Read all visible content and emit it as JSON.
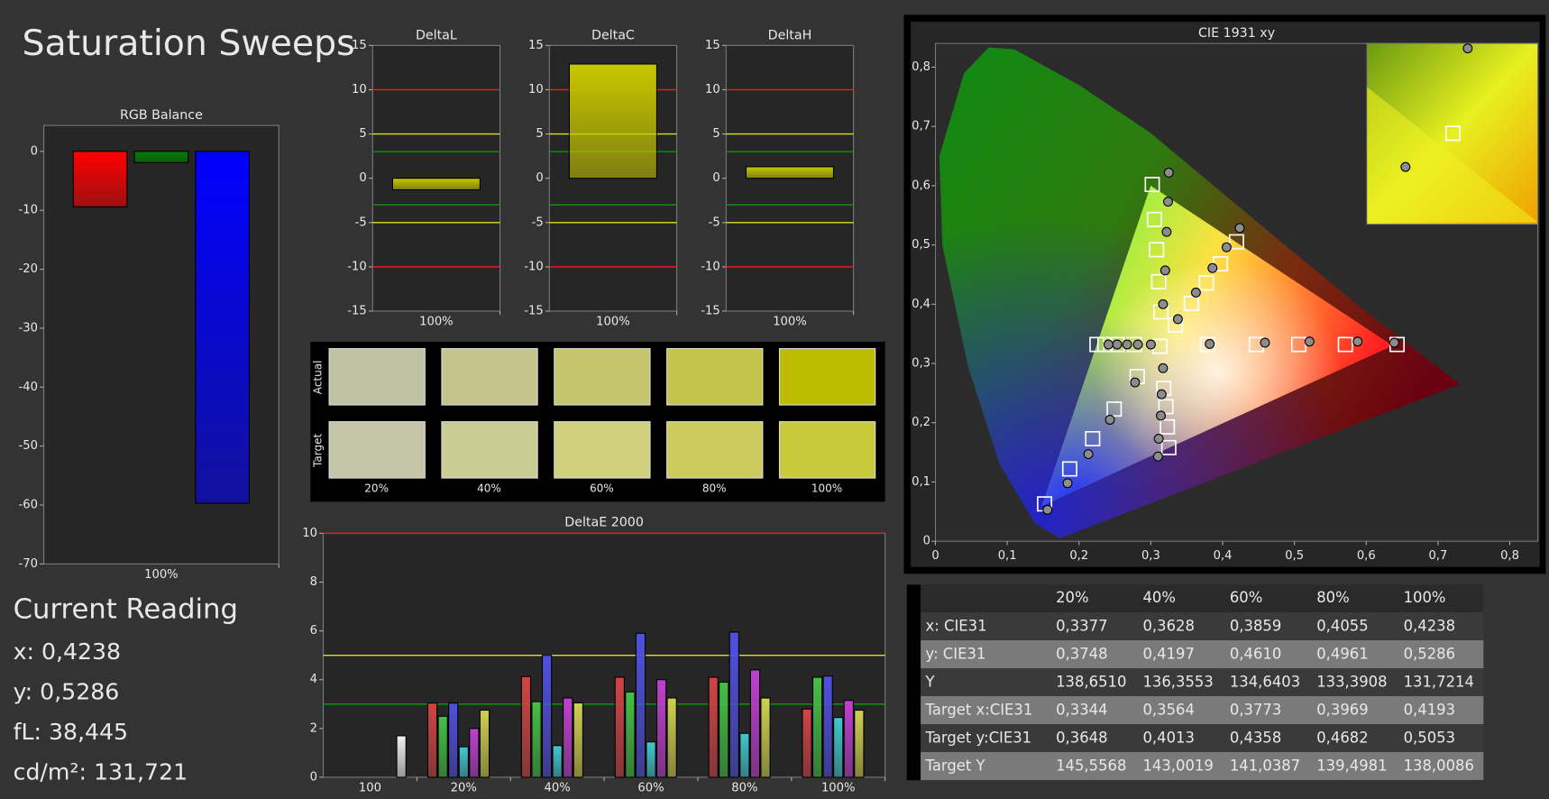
{
  "title": "Saturation Sweeps",
  "current_reading": {
    "heading": "Current Reading",
    "lines": [
      "x: 0,4238",
      "y: 0,5286",
      "fL: 38,445",
      "cd/m²: 131,721"
    ]
  },
  "chart_data": [
    {
      "type": "bar",
      "title": "RGB Balance",
      "categories": [
        "100%"
      ],
      "series": [
        {
          "color": "#ff0000",
          "values": [
            -9.4
          ]
        },
        {
          "color": "#008000",
          "values": [
            -1.9
          ]
        },
        {
          "color": "#0000ff",
          "values": [
            -59.7
          ]
        }
      ],
      "ylim": [
        -70,
        4.4
      ],
      "yticks": [
        0,
        -10,
        -20,
        -30,
        -40,
        -50,
        -60,
        -70
      ]
    },
    {
      "type": "bar",
      "title": "DeltaL",
      "categories": [
        "100%"
      ],
      "values": [
        -1.3
      ],
      "color": "#c8c800",
      "ylim": [
        -15,
        15
      ],
      "yticks": [
        15,
        10,
        5,
        0,
        -5,
        -10,
        -15
      ],
      "reference_lines": [
        {
          "value": 10,
          "color": "#e02020"
        },
        {
          "value": -10,
          "color": "#e02020"
        },
        {
          "value": 5,
          "color": "#e0e020"
        },
        {
          "value": -5,
          "color": "#e0e020"
        },
        {
          "value": 3,
          "color": "#109010"
        },
        {
          "value": -3,
          "color": "#109010"
        }
      ]
    },
    {
      "type": "bar",
      "title": "DeltaC",
      "categories": [
        "100%"
      ],
      "values": [
        12.9
      ],
      "color": "#c8c800",
      "ylim": [
        -15,
        15
      ],
      "yticks": [
        15,
        10,
        5,
        0,
        -5,
        -10,
        -15
      ],
      "reference_lines": [
        {
          "value": 10,
          "color": "#e02020"
        },
        {
          "value": -10,
          "color": "#e02020"
        },
        {
          "value": 5,
          "color": "#e0e020"
        },
        {
          "value": -5,
          "color": "#e0e020"
        },
        {
          "value": 3,
          "color": "#109010"
        },
        {
          "value": -3,
          "color": "#109010"
        }
      ]
    },
    {
      "type": "bar",
      "title": "DeltaH",
      "categories": [
        "100%"
      ],
      "values": [
        1.3
      ],
      "color": "#c8c800",
      "ylim": [
        -15,
        15
      ],
      "yticks": [
        15,
        10,
        5,
        0,
        -5,
        -10,
        -15
      ],
      "reference_lines": [
        {
          "value": 10,
          "color": "#e02020"
        },
        {
          "value": -10,
          "color": "#e02020"
        },
        {
          "value": 5,
          "color": "#e0e020"
        },
        {
          "value": -5,
          "color": "#e0e020"
        },
        {
          "value": 3,
          "color": "#109010"
        },
        {
          "value": -3,
          "color": "#109010"
        }
      ]
    },
    {
      "type": "bar",
      "title": "DeltaE 2000",
      "categories": [
        "100",
        "20%",
        "40%",
        "60%",
        "80%",
        "100%"
      ],
      "series": [
        {
          "color": "#d04545",
          "values": [
            null,
            3.04,
            4.13,
            4.1,
            4.1,
            2.8
          ]
        },
        {
          "color": "#45c045",
          "values": [
            null,
            2.5,
            3.1,
            3.5,
            3.9,
            4.1
          ]
        },
        {
          "color": "#5050e0",
          "values": [
            null,
            3.04,
            5.0,
            5.9,
            5.95,
            4.15
          ]
        },
        {
          "color": "#40c8d0",
          "values": [
            null,
            1.25,
            1.3,
            1.45,
            1.8,
            2.45
          ]
        },
        {
          "color": "#c040d0",
          "values": [
            null,
            2.0,
            3.25,
            4.0,
            4.4,
            3.15
          ]
        },
        {
          "color": "#d0d050",
          "values": [
            null,
            2.75,
            3.05,
            3.25,
            3.25,
            2.75
          ]
        },
        {
          "color": "#f0f0f0",
          "values": [
            1.7,
            null,
            null,
            null,
            null,
            null
          ]
        }
      ],
      "ylim": [
        0,
        10
      ],
      "yticks": [
        0,
        2,
        4,
        6,
        8,
        10
      ],
      "reference_lines": [
        {
          "value": 10,
          "color": "#e02020"
        },
        {
          "value": 5,
          "color": "#e0e020"
        },
        {
          "value": 3,
          "color": "#109010"
        }
      ]
    },
    {
      "type": "scatter",
      "title": "CIE 1931 xy",
      "xlim": [
        0,
        0.839
      ],
      "ylim": [
        0,
        0.84
      ],
      "xticks": [
        0,
        {
          "value": 0.1,
          "label": "0,1"
        },
        {
          "value": 0.2,
          "label": "0,2"
        },
        {
          "value": 0.3,
          "label": "0,3"
        },
        {
          "value": 0.4,
          "label": "0,4"
        },
        {
          "value": 0.5,
          "label": "0,5"
        },
        {
          "value": 0.6,
          "label": "0,6"
        },
        {
          "value": 0.7,
          "label": "0,7"
        },
        {
          "value": 0.8,
          "label": "0,8"
        }
      ],
      "yticks": [
        0,
        {
          "value": 0.1,
          "label": "0,1"
        },
        {
          "value": 0.2,
          "label": "0,2"
        },
        {
          "value": 0.3,
          "label": "0,3"
        },
        {
          "value": 0.4,
          "label": "0,4"
        },
        {
          "value": 0.5,
          "label": "0,5"
        },
        {
          "value": 0.6,
          "label": "0,6"
        },
        {
          "value": 0.7,
          "label": "0,7"
        },
        {
          "value": 0.8,
          "label": "0,8"
        }
      ],
      "series": [
        {
          "marker": "square",
          "color": "#ffffff",
          "x": [
            0.3127,
            0.379,
            0.447,
            0.506,
            0.571,
            0.643,
            0.314,
            0.311,
            0.308,
            0.305,
            0.302,
            0.281,
            0.249,
            0.219,
            0.187,
            0.152,
            0.277,
            0.253,
            0.236,
            0.225,
            0.318,
            0.321,
            0.323,
            0.325,
            0.3344,
            0.3564,
            0.3773,
            0.3969,
            0.4193
          ],
          "y": [
            0.329,
            0.332,
            0.332,
            0.332,
            0.332,
            0.332,
            0.387,
            0.438,
            0.492,
            0.543,
            0.602,
            0.278,
            0.223,
            0.173,
            0.122,
            0.063,
            0.332,
            0.332,
            0.332,
            0.332,
            0.258,
            0.227,
            0.193,
            0.158,
            0.3648,
            0.4013,
            0.4358,
            0.4682,
            0.5053
          ]
        },
        {
          "marker": "circle",
          "color": "#8c8c8c",
          "x": [
            0.382,
            0.459,
            0.521,
            0.588,
            0.639,
            0.317,
            0.32,
            0.322,
            0.324,
            0.325,
            0.278,
            0.243,
            0.213,
            0.184,
            0.156,
            0.3,
            0.282,
            0.267,
            0.253,
            0.241,
            0.317,
            0.315,
            0.314,
            0.311,
            0.31,
            0.3377,
            0.3628,
            0.3859,
            0.4055,
            0.4238
          ],
          "y": [
            0.333,
            0.335,
            0.337,
            0.337,
            0.335,
            0.4,
            0.457,
            0.522,
            0.573,
            0.622,
            0.268,
            0.205,
            0.147,
            0.098,
            0.053,
            0.332,
            0.332,
            0.332,
            0.332,
            0.332,
            0.292,
            0.248,
            0.212,
            0.173,
            0.143,
            0.3748,
            0.4197,
            0.461,
            0.4961,
            0.5286
          ]
        }
      ]
    }
  ],
  "swatches": {
    "row_labels": [
      "Actual",
      "Target"
    ],
    "columns": [
      "20%",
      "40%",
      "60%",
      "80%",
      "100%"
    ],
    "actual_colors": [
      "#c0c3a3",
      "#c4c48c",
      "#c5c56e",
      "#c4c44d",
      "#bcbc00"
    ],
    "target_colors": [
      "#c5c6a9",
      "#cbcb96",
      "#d0d07c",
      "#cccc5e",
      "#c9c93c"
    ]
  },
  "table": {
    "header": [
      "20%",
      "40%",
      "60%",
      "80%",
      "100%"
    ],
    "rows": [
      [
        "x: CIE31",
        "0,3377",
        "0,3628",
        "0,3859",
        "0,4055",
        "0,4238"
      ],
      [
        "y: CIE31",
        "0,3748",
        "0,4197",
        "0,4610",
        "0,4961",
        "0,5286"
      ],
      [
        "Y",
        "138,6510",
        "136,3553",
        "134,6403",
        "133,3908",
        "131,7214"
      ],
      [
        "Target x:CIE31",
        "0,3344",
        "0,3564",
        "0,3773",
        "0,3969",
        "0,4193"
      ],
      [
        "Target y:CIE31",
        "0,3648",
        "0,4013",
        "0,4358",
        "0,4682",
        "0,5053"
      ],
      [
        "Target Y",
        "145,5568",
        "143,0019",
        "141,0387",
        "139,4981",
        "138,0086"
      ]
    ]
  }
}
